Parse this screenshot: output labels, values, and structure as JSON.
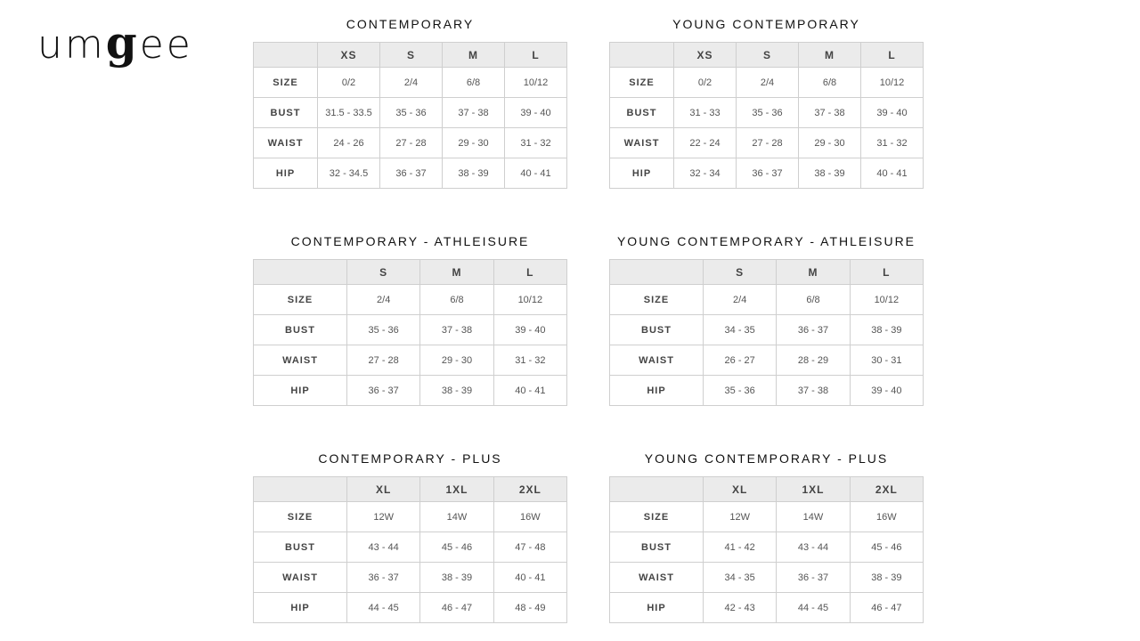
{
  "logo": {
    "pre": "um",
    "g": "g",
    "post": "ee"
  },
  "tables": [
    {
      "title": "CONTEMPORARY",
      "columns": [
        "XS",
        "S",
        "M",
        "L"
      ],
      "rows": [
        [
          "SIZE",
          "0/2",
          "2/4",
          "6/8",
          "10/12"
        ],
        [
          "BUST",
          "31.5 - 33.5",
          "35 - 36",
          "37 - 38",
          "39 - 40"
        ],
        [
          "WAIST",
          "24 - 26",
          "27 - 28",
          "29 - 30",
          "31 - 32"
        ],
        [
          "HIP",
          "32 - 34.5",
          "36 - 37",
          "38 - 39",
          "40 - 41"
        ]
      ]
    },
    {
      "title": "YOUNG CONTEMPORARY",
      "columns": [
        "XS",
        "S",
        "M",
        "L"
      ],
      "rows": [
        [
          "SIZE",
          "0/2",
          "2/4",
          "6/8",
          "10/12"
        ],
        [
          "BUST",
          "31 - 33",
          "35 - 36",
          "37 - 38",
          "39 - 40"
        ],
        [
          "WAIST",
          "22 - 24",
          "27 - 28",
          "29 - 30",
          "31 - 32"
        ],
        [
          "HIP",
          "32 - 34",
          "36 - 37",
          "38 - 39",
          "40 - 41"
        ]
      ]
    },
    {
      "title": "CONTEMPORARY - ATHLEISURE",
      "columns": [
        "S",
        "M",
        "L"
      ],
      "rows": [
        [
          "SIZE",
          "2/4",
          "6/8",
          "10/12"
        ],
        [
          "BUST",
          "35 - 36",
          "37 - 38",
          "39 - 40"
        ],
        [
          "WAIST",
          "27 - 28",
          "29 - 30",
          "31 - 32"
        ],
        [
          "HIP",
          "36 - 37",
          "38 - 39",
          "40 - 41"
        ]
      ]
    },
    {
      "title": "YOUNG CONTEMPORARY - ATHLEISURE",
      "columns": [
        "S",
        "M",
        "L"
      ],
      "rows": [
        [
          "SIZE",
          "2/4",
          "6/8",
          "10/12"
        ],
        [
          "BUST",
          "34 - 35",
          "36 - 37",
          "38 - 39"
        ],
        [
          "WAIST",
          "26 - 27",
          "28 - 29",
          "30 - 31"
        ],
        [
          "HIP",
          "35 - 36",
          "37 - 38",
          "39 - 40"
        ]
      ]
    },
    {
      "title": "CONTEMPORARY - PLUS",
      "columns": [
        "XL",
        "1XL",
        "2XL"
      ],
      "rows": [
        [
          "SIZE",
          "12W",
          "14W",
          "16W"
        ],
        [
          "BUST",
          "43 - 44",
          "45 - 46",
          "47 - 48"
        ],
        [
          "WAIST",
          "36 - 37",
          "38 - 39",
          "40 - 41"
        ],
        [
          "HIP",
          "44 - 45",
          "46 - 47",
          "48 - 49"
        ]
      ]
    },
    {
      "title": "YOUNG CONTEMPORARY - PLUS",
      "columns": [
        "XL",
        "1XL",
        "2XL"
      ],
      "rows": [
        [
          "SIZE",
          "12W",
          "14W",
          "16W"
        ],
        [
          "BUST",
          "41 - 42",
          "43 - 44",
          "45 - 46"
        ],
        [
          "WAIST",
          "34 - 35",
          "36 - 37",
          "38 - 39"
        ],
        [
          "HIP",
          "42 - 43",
          "44 - 45",
          "46 - 47"
        ]
      ]
    }
  ]
}
